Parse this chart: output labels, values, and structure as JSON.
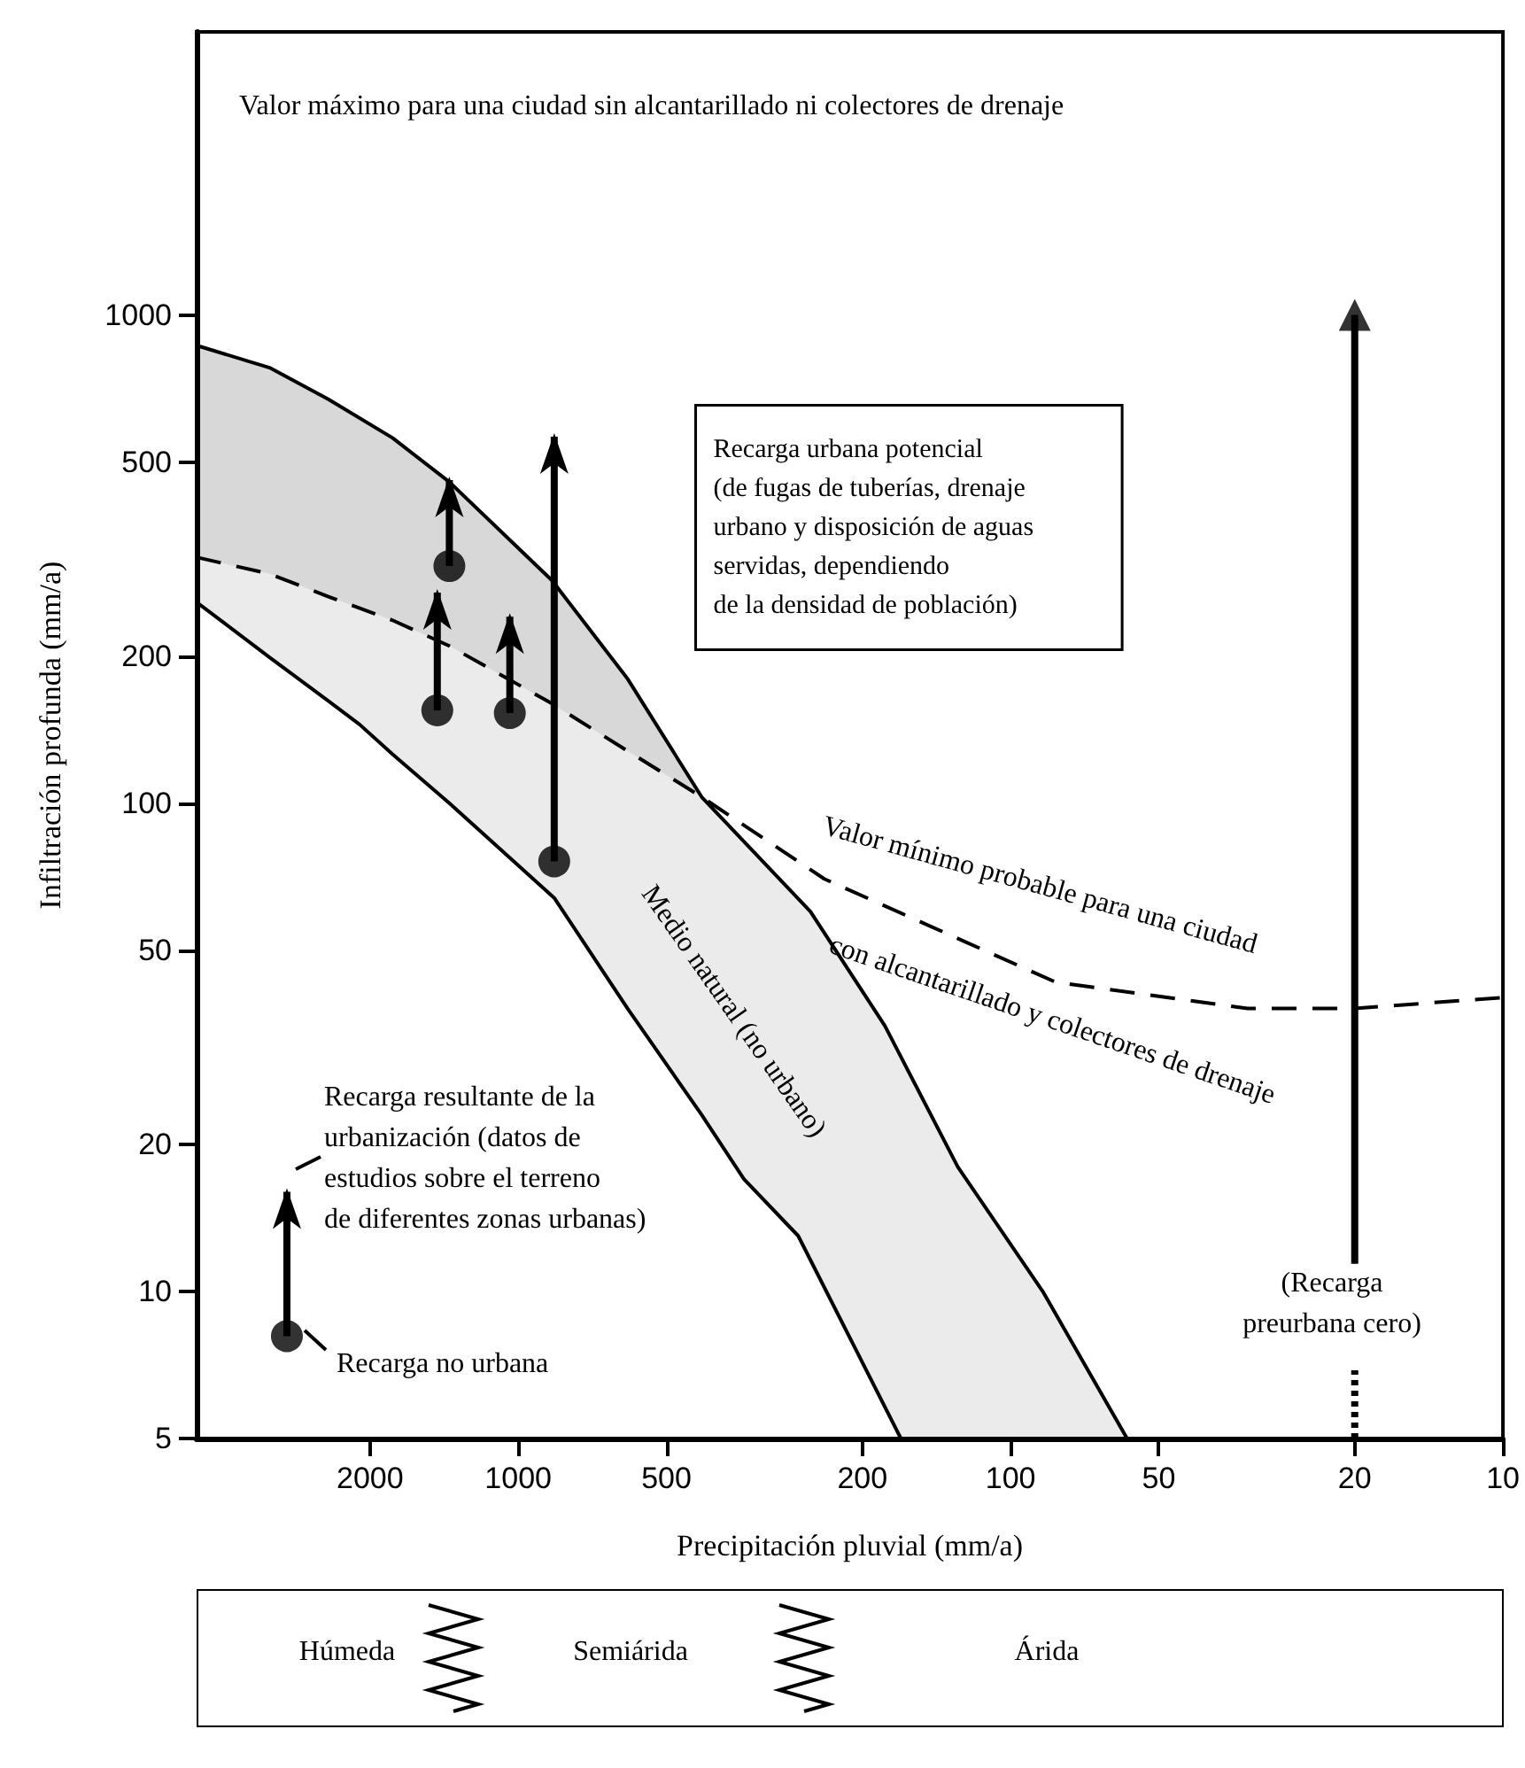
{
  "chart_data": {
    "type": "line",
    "xlabel": "Precipitación pluvial (mm/a)",
    "ylabel": "Infiltración profunda (mm/a)",
    "log": "xy",
    "xlim": [
      4500,
      10
    ],
    "xticks": [
      2000,
      1000,
      500,
      200,
      100,
      50,
      20,
      10
    ],
    "ylim": [
      5,
      3800
    ],
    "yticks": [
      5,
      10,
      20,
      50,
      100,
      200,
      500,
      1000
    ],
    "marker": "none",
    "series": [
      {
        "x": [
          4500,
          3200,
          2430,
          1800,
          1380,
          854,
          600,
          424,
          255,
          180,
          128,
          86,
          58
        ],
        "values": [
          866,
          780,
          672,
          560,
          455,
          286,
          180,
          103,
          60,
          35,
          18,
          10,
          5
        ],
        "color": "#000000",
        "line_style": "solid"
      },
      {
        "x": [
          4500,
          3200,
          2430,
          2100,
          1800,
          1380,
          845,
          600,
          424,
          348,
          270,
          167
        ],
        "values": [
          258,
          199,
          162,
          145,
          126,
          100,
          64,
          38,
          23,
          17,
          13,
          5
        ],
        "color": "#000000",
        "line_style": "solid"
      },
      {
        "x": [
          4500,
          3200,
          2430,
          1800,
          1380,
          854,
          600,
          424,
          239,
          81,
          33,
          20,
          10
        ],
        "values": [
          319,
          295,
          265,
          237,
          210,
          160,
          128,
          103,
          70,
          43,
          38,
          38,
          40
        ],
        "color": "#000000",
        "line_style": "dashed"
      },
      {
        "x": [
          20,
          20
        ],
        "values": [
          5,
          6.9
        ],
        "color": "#000000",
        "line_style": "dotted"
      },
      {
        "type": "scatter",
        "x": [
          1380,
          1460,
          1040,
          845
        ],
        "values": [
          306,
          155,
          153,
          76
        ],
        "errors": [
          [
            306,
            459
          ],
          [
            155,
            270
          ],
          [
            153,
            241
          ],
          [
            76,
            563
          ]
        ],
        "color": "#000000",
        "marker": "circle"
      },
      {
        "type": "scatter",
        "x": [
          2950
        ],
        "values": [
          8.1
        ],
        "errors": [
          [
            8.1,
            16
          ]
        ],
        "color": "#000000",
        "marker": "circle"
      },
      {
        "type": "scatter",
        "x": [
          20
        ],
        "values": [
          1000
        ],
        "errors": [
          [
            11.4,
            1000
          ]
        ],
        "color": "#000000",
        "marker": "triangle"
      }
    ],
    "annotations": [
      "Valor máximo para una ciudad sin alcantarillado ni colectores de drenaje",
      "Recarga urbana potencial\n(de fugas de tuberías, drenaje\nurbano y disposición de aguas\nservidas, dependiendo\nde la densidad de población)",
      "Valor mínimo probable para una ciudad\ncon alcantarillado y colectores de drenaje",
      "Medio natural (no urbano)",
      "Recarga resultante de la\nurbanización (datos de\nestudios sobre el terreno\nde diferentes zonas urbanas)",
      "Recarga no urbana",
      "(Recarga\npreurbana cero)",
      "Húmeda",
      "Semiárida",
      "Árida"
    ]
  }
}
